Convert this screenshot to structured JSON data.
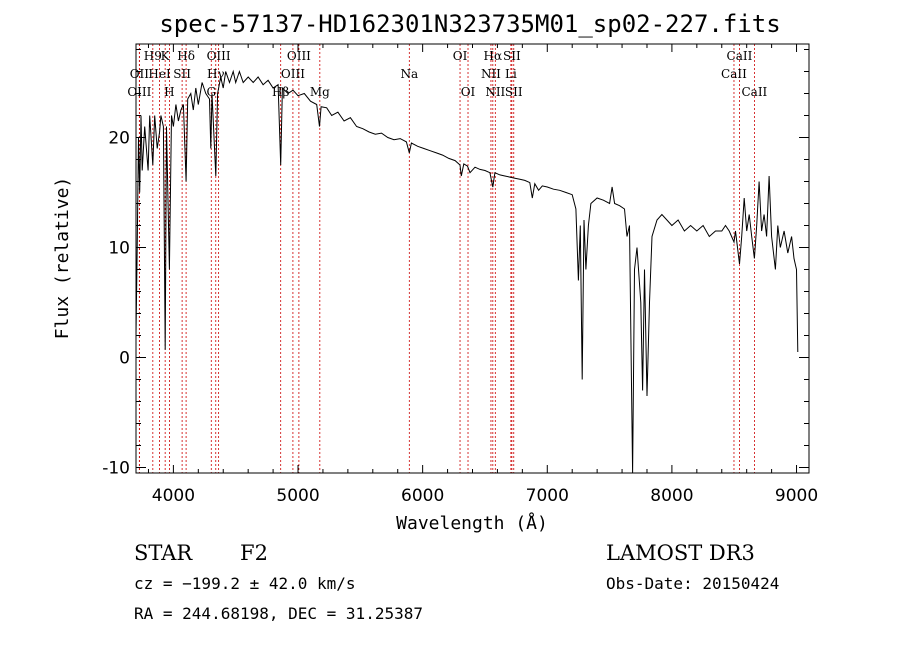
{
  "chart_data": {
    "type": "line",
    "title": "spec-57137-HD162301N323735M01_sp02-227.fits",
    "xlabel": "Wavelength (Å)",
    "ylabel": "Flux (relative)",
    "xlim": [
      3700,
      9100
    ],
    "ylim": [
      -10.5,
      28.5
    ],
    "x_ticks": [
      4000,
      5000,
      6000,
      7000,
      8000,
      9000
    ],
    "y_ticks": [
      -10,
      0,
      10,
      20
    ],
    "grid": false,
    "series": [
      {
        "values": [
          [
            3700,
            2.0
          ],
          [
            3710,
            10.0
          ],
          [
            3720,
            20.0
          ],
          [
            3730,
            15.0
          ],
          [
            3740,
            22.0
          ],
          [
            3750,
            17.0
          ],
          [
            3770,
            21.0
          ],
          [
            3797,
            17.0
          ],
          [
            3810,
            22.0
          ],
          [
            3835,
            17.5
          ],
          [
            3850,
            22.0
          ],
          [
            3870,
            19.0
          ],
          [
            3889,
            20.5
          ],
          [
            3900,
            22.0
          ],
          [
            3920,
            21.0
          ],
          [
            3934,
            0.7
          ],
          [
            3945,
            21.0
          ],
          [
            3968,
            8.0
          ],
          [
            3985,
            22.0
          ],
          [
            4000,
            21.0
          ],
          [
            4020,
            23.0
          ],
          [
            4040,
            21.5
          ],
          [
            4060,
            22.5
          ],
          [
            4080,
            23.0
          ],
          [
            4102,
            16.0
          ],
          [
            4115,
            23.5
          ],
          [
            4140,
            24.0
          ],
          [
            4160,
            22.5
          ],
          [
            4180,
            24.5
          ],
          [
            4200,
            23.0
          ],
          [
            4230,
            25.0
          ],
          [
            4260,
            24.0
          ],
          [
            4290,
            23.5
          ],
          [
            4300,
            19.0
          ],
          [
            4310,
            24.0
          ],
          [
            4340,
            16.5
          ],
          [
            4355,
            24.0
          ],
          [
            4380,
            25.5
          ],
          [
            4400,
            24.5
          ],
          [
            4420,
            26.0
          ],
          [
            4450,
            25.0
          ],
          [
            4480,
            26.0
          ],
          [
            4500,
            25.0
          ],
          [
            4530,
            26.0
          ],
          [
            4560,
            25.0
          ],
          [
            4600,
            25.5
          ],
          [
            4640,
            25.0
          ],
          [
            4680,
            25.5
          ],
          [
            4720,
            24.8
          ],
          [
            4760,
            25.2
          ],
          [
            4800,
            24.5
          ],
          [
            4840,
            24.8
          ],
          [
            4861,
            17.5
          ],
          [
            4875,
            24.5
          ],
          [
            4920,
            24.0
          ],
          [
            4960,
            24.3
          ],
          [
            5000,
            23.8
          ],
          [
            5050,
            24.0
          ],
          [
            5100,
            23.3
          ],
          [
            5150,
            23.0
          ],
          [
            5172,
            21.0
          ],
          [
            5185,
            22.8
          ],
          [
            5230,
            22.7
          ],
          [
            5270,
            22.0
          ],
          [
            5320,
            22.3
          ],
          [
            5370,
            21.5
          ],
          [
            5420,
            21.8
          ],
          [
            5470,
            21.0
          ],
          [
            5520,
            20.8
          ],
          [
            5570,
            20.5
          ],
          [
            5620,
            20.3
          ],
          [
            5670,
            20.4
          ],
          [
            5720,
            20.0
          ],
          [
            5770,
            19.8
          ],
          [
            5820,
            19.9
          ],
          [
            5870,
            19.6
          ],
          [
            5893,
            18.6
          ],
          [
            5910,
            19.5
          ],
          [
            5960,
            19.2
          ],
          [
            6010,
            19.0
          ],
          [
            6060,
            18.8
          ],
          [
            6110,
            18.6
          ],
          [
            6160,
            18.4
          ],
          [
            6210,
            18.1
          ],
          [
            6260,
            17.9
          ],
          [
            6300,
            17.5
          ],
          [
            6310,
            16.5
          ],
          [
            6330,
            17.6
          ],
          [
            6360,
            17.4
          ],
          [
            6380,
            16.8
          ],
          [
            6420,
            17.3
          ],
          [
            6460,
            17.1
          ],
          [
            6500,
            17.0
          ],
          [
            6540,
            16.8
          ],
          [
            6563,
            15.5
          ],
          [
            6580,
            16.8
          ],
          [
            6620,
            16.6
          ],
          [
            6660,
            16.5
          ],
          [
            6700,
            16.4
          ],
          [
            6740,
            16.3
          ],
          [
            6780,
            16.2
          ],
          [
            6820,
            16.1
          ],
          [
            6860,
            15.9
          ],
          [
            6880,
            14.5
          ],
          [
            6900,
            15.8
          ],
          [
            6930,
            15.2
          ],
          [
            6960,
            15.6
          ],
          [
            7000,
            15.5
          ],
          [
            7050,
            15.3
          ],
          [
            7100,
            15.2
          ],
          [
            7150,
            15.0
          ],
          [
            7200,
            14.8
          ],
          [
            7230,
            13.5
          ],
          [
            7250,
            7.0
          ],
          [
            7265,
            12.0
          ],
          [
            7280,
            -2.0
          ],
          [
            7295,
            12.5
          ],
          [
            7310,
            8.0
          ],
          [
            7330,
            12.0
          ],
          [
            7350,
            14.0
          ],
          [
            7400,
            14.5
          ],
          [
            7450,
            14.3
          ],
          [
            7500,
            14.0
          ],
          [
            7520,
            15.5
          ],
          [
            7540,
            14.0
          ],
          [
            7580,
            13.8
          ],
          [
            7620,
            13.5
          ],
          [
            7640,
            11.0
          ],
          [
            7660,
            12.0
          ],
          [
            7685,
            -11.0
          ],
          [
            7700,
            8.0
          ],
          [
            7720,
            10.0
          ],
          [
            7750,
            5.0
          ],
          [
            7765,
            -3.0
          ],
          [
            7780,
            8.0
          ],
          [
            7800,
            -3.5
          ],
          [
            7820,
            5.0
          ],
          [
            7840,
            11.0
          ],
          [
            7880,
            12.5
          ],
          [
            7920,
            13.0
          ],
          [
            7960,
            12.5
          ],
          [
            8000,
            12.0
          ],
          [
            8050,
            12.5
          ],
          [
            8100,
            11.5
          ],
          [
            8150,
            12.0
          ],
          [
            8200,
            11.5
          ],
          [
            8250,
            12.0
          ],
          [
            8300,
            11.0
          ],
          [
            8350,
            11.5
          ],
          [
            8400,
            11.5
          ],
          [
            8430,
            12.0
          ],
          [
            8460,
            11.5
          ],
          [
            8498,
            10.5
          ],
          [
            8510,
            11.5
          ],
          [
            8542,
            8.5
          ],
          [
            8560,
            11.0
          ],
          [
            8580,
            14.5
          ],
          [
            8600,
            11.5
          ],
          [
            8620,
            13.0
          ],
          [
            8640,
            11.0
          ],
          [
            8662,
            9.0
          ],
          [
            8680,
            12.0
          ],
          [
            8700,
            16.0
          ],
          [
            8720,
            11.5
          ],
          [
            8740,
            13.0
          ],
          [
            8760,
            11.0
          ],
          [
            8780,
            16.5
          ],
          [
            8800,
            11.0
          ],
          [
            8830,
            8.0
          ],
          [
            8850,
            12.0
          ],
          [
            8870,
            10.0
          ],
          [
            8900,
            11.5
          ],
          [
            8930,
            9.5
          ],
          [
            8960,
            11.0
          ],
          [
            8980,
            9.0
          ],
          [
            9000,
            8.0
          ],
          [
            9010,
            0.5
          ]
        ]
      }
    ],
    "spectral_lines": [
      {
        "label": "H9",
        "x": 3835,
        "row": 0
      },
      {
        "label": "K",
        "x": 3934,
        "row": 0
      },
      {
        "label": "Hδ",
        "x": 4102,
        "row": 0
      },
      {
        "label": "OII",
        "x": 3727,
        "row": 1
      },
      {
        "label": "HeI",
        "x": 3889,
        "row": 1
      },
      {
        "label": "SII",
        "x": 4070,
        "row": 1
      },
      {
        "label": "OIII",
        "x": 3727,
        "row": 2
      },
      {
        "label": "H",
        "x": 3968,
        "row": 2
      },
      {
        "label": "OIII",
        "x": 4363,
        "row": 0
      },
      {
        "label": "Hγ",
        "x": 4340,
        "row": 1
      },
      {
        "label": "G",
        "x": 4304,
        "row": 2
      },
      {
        "label": "OIII",
        "x": 5007,
        "row": 0
      },
      {
        "label": "OIII",
        "x": 4959,
        "row": 1
      },
      {
        "label": "Hβ",
        "x": 4861,
        "row": 2
      },
      {
        "label": "Mg",
        "x": 5175,
        "row": 2
      },
      {
        "label": "Na",
        "x": 5893,
        "row": 1
      },
      {
        "label": "OI",
        "x": 6300,
        "row": 0
      },
      {
        "label": "OI",
        "x": 6364,
        "row": 2
      },
      {
        "label": "Hα",
        "x": 6563,
        "row": 0
      },
      {
        "label": "SII",
        "x": 6716,
        "row": 0
      },
      {
        "label": "NII",
        "x": 6548,
        "row": 1
      },
      {
        "label": "Li",
        "x": 6708,
        "row": 1
      },
      {
        "label": "NII",
        "x": 6583,
        "row": 2
      },
      {
        "label": "SII",
        "x": 6731,
        "row": 2
      },
      {
        "label": "CaII",
        "x": 8542,
        "row": 0
      },
      {
        "label": "CaII",
        "x": 8498,
        "row": 1
      },
      {
        "label": "CaII",
        "x": 8662,
        "row": 2
      }
    ]
  },
  "footer": {
    "object_class": "STAR",
    "subclass": "F2",
    "survey": "LAMOST DR3",
    "redshift": "cz = −199.2 ± 42.0 km/s",
    "obs_date": "Obs-Date: 20150424",
    "coords": "RA = 244.68198, DEC =  31.25387"
  },
  "colors": {
    "spectrum": "#000000",
    "line_markers": "#cc0000"
  }
}
